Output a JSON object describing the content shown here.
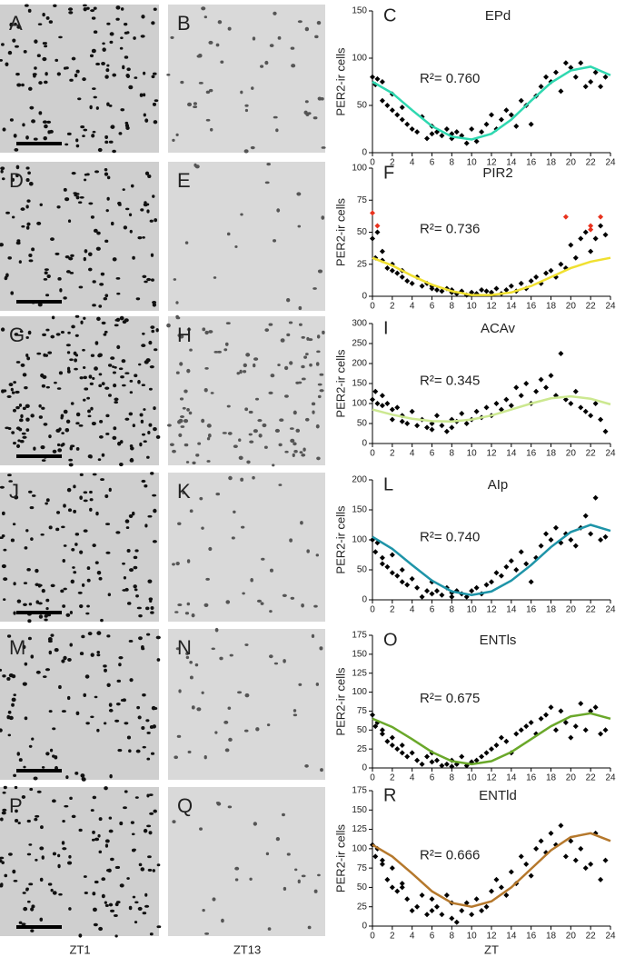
{
  "micrographs": {
    "labels": [
      [
        "A",
        "B"
      ],
      [
        "D",
        "E"
      ],
      [
        "G",
        "H"
      ],
      [
        "J",
        "K"
      ],
      [
        "M",
        "N"
      ],
      [
        "P",
        "Q"
      ]
    ],
    "columns": [
      "ZT1",
      "ZT13"
    ]
  },
  "chart_data": [
    {
      "type": "scatter",
      "panel_label": "C",
      "title": "EPd",
      "y_label": "PER2-ir cells",
      "annotation": "R²= 0.760",
      "xlim": [
        0,
        24
      ],
      "xticks": [
        0,
        2,
        4,
        6,
        8,
        10,
        12,
        14,
        16,
        18,
        20,
        22,
        24
      ],
      "ylim": [
        0,
        150
      ],
      "yticks": [
        0,
        50,
        100,
        150
      ],
      "series": [
        {
          "color": "#000000",
          "x": [
            0,
            0.3,
            0.5,
            1,
            1,
            1.5,
            2,
            2,
            2.5,
            3,
            3,
            3.5,
            4,
            4.5,
            5,
            5.5,
            6,
            6,
            6.5,
            7,
            7.5,
            8,
            8,
            8.5,
            9,
            9.5,
            10,
            10.5,
            11,
            11.5,
            12,
            12.5,
            13,
            13.5,
            14,
            14.5,
            15,
            15.5,
            16,
            16.5,
            17,
            17.5,
            18,
            18.5,
            19,
            19.5,
            20,
            20.5,
            21,
            21.5,
            22,
            22.5,
            23,
            23.5
          ],
          "values": [
            80,
            72,
            78,
            55,
            75,
            50,
            62,
            45,
            40,
            35,
            48,
            30,
            25,
            22,
            38,
            15,
            28,
            20,
            22,
            18,
            25,
            15,
            20,
            22,
            18,
            10,
            25,
            12,
            22,
            30,
            40,
            25,
            35,
            45,
            40,
            28,
            55,
            50,
            30,
            60,
            70,
            80,
            75,
            85,
            65,
            95,
            90,
            80,
            95,
            70,
            75,
            85,
            70,
            80
          ]
        },
        {
          "type": "line",
          "color": "#2fd8b0",
          "x": [
            0,
            2,
            4,
            6,
            8,
            10,
            12,
            14,
            16,
            18,
            20,
            22,
            24
          ],
          "values": [
            75,
            63,
            45,
            28,
            17,
            14,
            20,
            35,
            55,
            74,
            87,
            91,
            82
          ]
        }
      ]
    },
    {
      "type": "scatter",
      "panel_label": "F",
      "title": "PIR2",
      "y_label": "PER2-ir cells",
      "annotation": "R²= 0.736",
      "xlim": [
        0,
        24
      ],
      "xticks": [
        0,
        2,
        4,
        6,
        8,
        10,
        12,
        14,
        16,
        18,
        20,
        22,
        24
      ],
      "ylim": [
        0,
        100
      ],
      "yticks": [
        0,
        25,
        50,
        75,
        100
      ],
      "series": [
        {
          "color": "#000000",
          "x": [
            0,
            0.3,
            0.5,
            1,
            1,
            1.5,
            2,
            2,
            2.5,
            3,
            3,
            3.5,
            4,
            4.5,
            5,
            5.5,
            6,
            6,
            6.5,
            7,
            7.5,
            8,
            8,
            8.5,
            9,
            9.5,
            10,
            10.5,
            11,
            11.5,
            12,
            12.5,
            13,
            13.5,
            14,
            14.5,
            15,
            15.5,
            16,
            16.5,
            17,
            17.5,
            18,
            18.5,
            19,
            19.5,
            20,
            20.5,
            21,
            21.5,
            22,
            22.5,
            23,
            23.5
          ],
          "values": [
            45,
            30,
            50,
            35,
            28,
            22,
            25,
            20,
            18,
            15,
            20,
            12,
            10,
            15,
            8,
            10,
            6,
            8,
            5,
            4,
            6,
            3,
            5,
            2,
            4,
            1,
            3,
            2,
            5,
            4,
            3,
            6,
            2,
            5,
            8,
            4,
            10,
            6,
            12,
            15,
            10,
            18,
            20,
            15,
            25,
            22,
            40,
            30,
            45,
            50,
            35,
            45,
            55,
            48
          ]
        },
        {
          "color": "#e8321e",
          "x": [
            0,
            0.5,
            19.5,
            22,
            22,
            23
          ],
          "values": [
            65,
            55,
            62,
            55,
            52,
            62
          ]
        },
        {
          "type": "line",
          "color": "#f0e030",
          "x": [
            0,
            2,
            4,
            6,
            8,
            10,
            12,
            14,
            16,
            18,
            20,
            22,
            24
          ],
          "values": [
            30,
            24,
            16,
            9,
            4,
            1,
            1,
            3,
            8,
            15,
            22,
            27,
            30
          ]
        }
      ]
    },
    {
      "type": "scatter",
      "panel_label": "I",
      "title": "ACAv",
      "y_label": "PER2-ir cells",
      "annotation": "R²= 0.345",
      "xlim": [
        0,
        24
      ],
      "xticks": [
        0,
        2,
        4,
        6,
        8,
        10,
        12,
        14,
        16,
        18,
        20,
        22,
        24
      ],
      "ylim": [
        0,
        300
      ],
      "yticks": [
        0,
        50,
        100,
        150,
        200,
        250,
        300
      ],
      "series": [
        {
          "color": "#000000",
          "x": [
            0,
            0.3,
            0.5,
            1,
            1,
            1.5,
            2,
            2,
            2.5,
            3,
            3,
            3.5,
            4,
            4.5,
            5,
            5.5,
            6,
            6,
            6.5,
            7,
            7.5,
            8,
            8,
            8.5,
            9,
            9.5,
            10,
            10.5,
            11,
            11.5,
            12,
            12.5,
            13,
            13.5,
            14,
            14.5,
            15,
            15.5,
            16,
            16.5,
            17,
            17.5,
            18,
            18.5,
            19,
            19.5,
            20,
            20.5,
            21,
            21.5,
            22,
            22.5,
            23,
            23.5
          ],
          "values": [
            110,
            130,
            100,
            120,
            95,
            100,
            85,
            60,
            90,
            55,
            70,
            50,
            80,
            45,
            60,
            40,
            50,
            35,
            70,
            45,
            30,
            60,
            40,
            55,
            75,
            50,
            60,
            80,
            65,
            90,
            70,
            100,
            85,
            110,
            95,
            140,
            120,
            150,
            100,
            130,
            160,
            140,
            170,
            120,
            225,
            110,
            100,
            130,
            90,
            80,
            70,
            100,
            60,
            30
          ]
        },
        {
          "type": "line",
          "color": "#cce890",
          "x": [
            0,
            2,
            4,
            6,
            8,
            10,
            12,
            14,
            16,
            18,
            20,
            22,
            24
          ],
          "values": [
            85,
            72,
            62,
            56,
            55,
            60,
            70,
            85,
            100,
            113,
            118,
            112,
            98
          ]
        }
      ]
    },
    {
      "type": "scatter",
      "panel_label": "L",
      "title": "AIp",
      "y_label": "PER2-ir cells",
      "annotation": "R²= 0.740",
      "xlim": [
        0,
        24
      ],
      "xticks": [
        0,
        2,
        4,
        6,
        8,
        10,
        12,
        14,
        16,
        18,
        20,
        22,
        24
      ],
      "ylim": [
        0,
        200
      ],
      "yticks": [
        0,
        50,
        100,
        150,
        200
      ],
      "series": [
        {
          "color": "#000000",
          "x": [
            0,
            0.3,
            0.5,
            1,
            1,
            1.5,
            2,
            2,
            2.5,
            3,
            3,
            3.5,
            4,
            4.5,
            5,
            5.5,
            6,
            6,
            6.5,
            7,
            7.5,
            8,
            8,
            8.5,
            9,
            9.5,
            10,
            10.5,
            11,
            11.5,
            12,
            12.5,
            13,
            13.5,
            14,
            14.5,
            15,
            15.5,
            16,
            16.5,
            17,
            17.5,
            18,
            18.5,
            19,
            19.5,
            20,
            20.5,
            21,
            21.5,
            22,
            22.5,
            23,
            23.5
          ],
          "values": [
            100,
            80,
            95,
            60,
            70,
            55,
            75,
            45,
            40,
            30,
            50,
            25,
            35,
            20,
            5,
            15,
            30,
            10,
            15,
            8,
            20,
            5,
            12,
            15,
            10,
            5,
            15,
            20,
            10,
            25,
            30,
            45,
            40,
            55,
            65,
            50,
            80,
            60,
            30,
            70,
            90,
            110,
            100,
            120,
            95,
            110,
            100,
            90,
            120,
            140,
            110,
            170,
            100,
            105
          ]
        },
        {
          "type": "line",
          "color": "#1e94a8",
          "x": [
            0,
            2,
            4,
            6,
            8,
            10,
            12,
            14,
            16,
            18,
            20,
            22,
            24
          ],
          "values": [
            105,
            85,
            58,
            32,
            14,
            8,
            14,
            32,
            58,
            88,
            113,
            125,
            115
          ]
        }
      ]
    },
    {
      "type": "scatter",
      "panel_label": "O",
      "title": "ENTls",
      "y_label": "PER2-ir cells",
      "annotation": "R²= 0.675",
      "xlim": [
        0,
        24
      ],
      "xticks": [
        0,
        2,
        4,
        6,
        8,
        10,
        12,
        14,
        16,
        18,
        20,
        22,
        24
      ],
      "ylim": [
        0,
        175
      ],
      "yticks": [
        0,
        25,
        50,
        75,
        100,
        125,
        150,
        175
      ],
      "series": [
        {
          "color": "#000000",
          "x": [
            0,
            0.3,
            0.5,
            1,
            1,
            1.5,
            2,
            2,
            2.5,
            3,
            3,
            3.5,
            4,
            4.5,
            5,
            5.5,
            6,
            6,
            6.5,
            7,
            7.5,
            8,
            8,
            8.5,
            9,
            9.5,
            10,
            10.5,
            11,
            11.5,
            12,
            12.5,
            13,
            13.5,
            14,
            14.5,
            15,
            15.5,
            16,
            16.5,
            17,
            17.5,
            18,
            18.5,
            19,
            19.5,
            20,
            20.5,
            21,
            21.5,
            22,
            22.5,
            23,
            23.5
          ],
          "values": [
            70,
            55,
            60,
            45,
            50,
            35,
            40,
            30,
            25,
            20,
            30,
            15,
            20,
            10,
            5,
            15,
            20,
            8,
            10,
            3,
            5,
            2,
            10,
            5,
            15,
            3,
            8,
            10,
            15,
            20,
            25,
            30,
            40,
            35,
            20,
            45,
            50,
            55,
            60,
            45,
            65,
            70,
            80,
            50,
            75,
            60,
            40,
            55,
            85,
            50,
            75,
            80,
            45,
            50
          ]
        },
        {
          "type": "line",
          "color": "#6aa82a",
          "x": [
            0,
            2,
            4,
            6,
            8,
            10,
            12,
            14,
            16,
            18,
            20,
            22,
            24
          ],
          "values": [
            65,
            54,
            38,
            21,
            9,
            5,
            9,
            21,
            38,
            55,
            68,
            72,
            65
          ]
        }
      ]
    },
    {
      "type": "scatter",
      "panel_label": "R",
      "title": "ENTld",
      "y_label": "PER2-ir cells",
      "x_label": "ZT",
      "annotation": "R²= 0.666",
      "xlim": [
        0,
        24
      ],
      "xticks": [
        0,
        2,
        4,
        6,
        8,
        10,
        12,
        14,
        16,
        18,
        20,
        22,
        24
      ],
      "ylim": [
        0,
        175
      ],
      "yticks": [
        0,
        25,
        50,
        75,
        100,
        125,
        150,
        175
      ],
      "series": [
        {
          "color": "#000000",
          "x": [
            0,
            0.3,
            0.5,
            1,
            1,
            1.5,
            2,
            2,
            2.5,
            3,
            3,
            3.5,
            4,
            4.5,
            5,
            5.5,
            6,
            6,
            6.5,
            7,
            7.5,
            8,
            8,
            8.5,
            9,
            9.5,
            10,
            10.5,
            11,
            11.5,
            12,
            12.5,
            13,
            13.5,
            14,
            14.5,
            15,
            15.5,
            16,
            16.5,
            17,
            17.5,
            18,
            18.5,
            19,
            19.5,
            20,
            20.5,
            21,
            21.5,
            22,
            22.5,
            23,
            23.5
          ],
          "values": [
            105,
            90,
            100,
            80,
            85,
            60,
            75,
            50,
            45,
            55,
            50,
            35,
            20,
            25,
            40,
            15,
            20,
            35,
            25,
            15,
            40,
            10,
            30,
            5,
            20,
            30,
            15,
            35,
            20,
            25,
            45,
            60,
            50,
            40,
            70,
            55,
            90,
            80,
            65,
            100,
            110,
            95,
            120,
            105,
            130,
            90,
            110,
            85,
            100,
            75,
            80,
            120,
            60,
            85
          ]
        },
        {
          "type": "line",
          "color": "#b5782c",
          "x": [
            0,
            2,
            4,
            6,
            8,
            10,
            12,
            14,
            16,
            18,
            20,
            22,
            24
          ],
          "values": [
            105,
            90,
            68,
            45,
            30,
            25,
            32,
            50,
            74,
            98,
            115,
            120,
            110
          ]
        }
      ]
    }
  ]
}
